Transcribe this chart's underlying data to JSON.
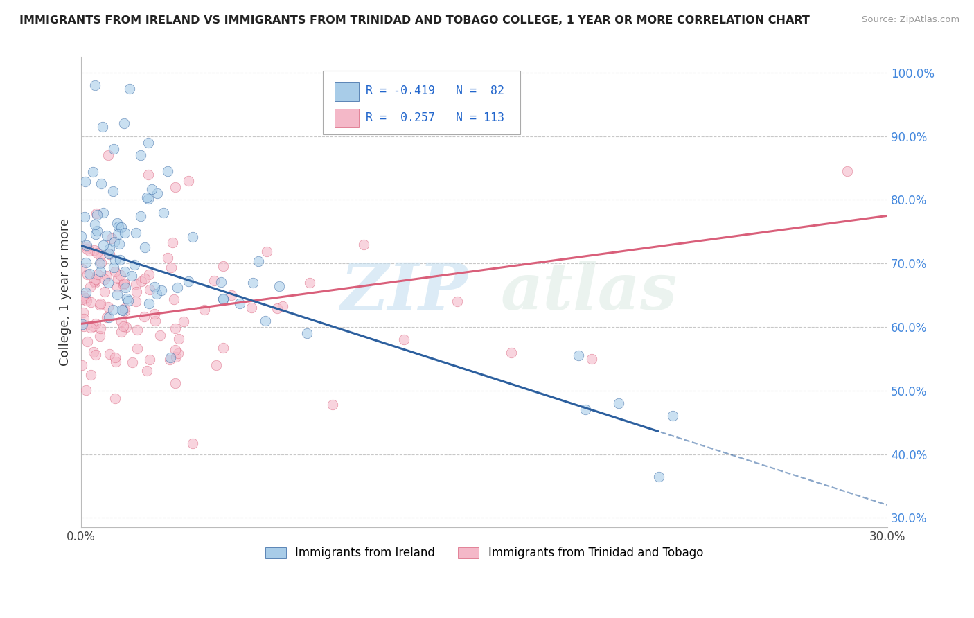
{
  "title": "IMMIGRANTS FROM IRELAND VS IMMIGRANTS FROM TRINIDAD AND TOBAGO COLLEGE, 1 YEAR OR MORE CORRELATION CHART",
  "source": "Source: ZipAtlas.com",
  "ylabel": "College, 1 year or more",
  "legend_label_1": "Immigrants from Ireland",
  "legend_label_2": "Immigrants from Trinidad and Tobago",
  "R1": -0.419,
  "N1": 82,
  "R2": 0.257,
  "N2": 113,
  "color1": "#a8cce8",
  "color2": "#f4b8c8",
  "line_color1": "#2c5f9e",
  "line_color2": "#d95f7a",
  "xlim": [
    0.0,
    0.3
  ],
  "ylim": [
    0.285,
    1.025
  ],
  "x_ticks": [
    0.0,
    0.05,
    0.1,
    0.15,
    0.2,
    0.25,
    0.3
  ],
  "x_tick_labels": [
    "0.0%",
    "",
    "",
    "",
    "",
    "",
    "30.0%"
  ],
  "y_ticks": [
    0.3,
    0.4,
    0.5,
    0.6,
    0.7,
    0.8,
    0.9,
    1.0
  ],
  "y_tick_labels": [
    "30.0%",
    "40.0%",
    "50.0%",
    "60.0%",
    "70.0%",
    "80.0%",
    "90.0%",
    "100.0%"
  ],
  "watermark_zip": "ZIP",
  "watermark_atlas": "atlas",
  "line1_x0": 0.0,
  "line1_y0": 0.728,
  "line1_x1": 0.3,
  "line1_y1": 0.32,
  "line1_solid_end": 0.215,
  "line2_x0": 0.0,
  "line2_y0": 0.605,
  "line2_x1": 0.3,
  "line2_y1": 0.775
}
